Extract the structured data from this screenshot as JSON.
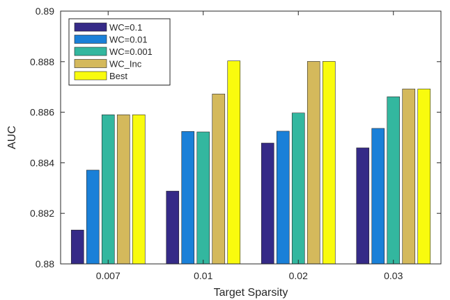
{
  "chart_data": {
    "type": "bar",
    "title": "",
    "xlabel": "Target Sparsity",
    "ylabel": "AUC",
    "categories": [
      "0.007",
      "0.01",
      "0.02",
      "0.03"
    ],
    "ylim": [
      0.88,
      0.89
    ],
    "yticks": [
      "0.88",
      "0.882",
      "0.884",
      "0.886",
      "0.888",
      "0.89"
    ],
    "ytick_values": [
      0.88,
      0.882,
      0.884,
      0.886,
      0.888,
      0.89
    ],
    "grid": false,
    "legend_position": "top-left",
    "series": [
      {
        "name": "WC=0.1",
        "color": "#352a87",
        "values": [
          0.88134,
          0.88288,
          0.88478,
          0.88459
        ]
      },
      {
        "name": "WC=0.01",
        "color": "#1a80d8",
        "values": [
          0.88371,
          0.88524,
          0.88525,
          0.88536
        ]
      },
      {
        "name": "WC=0.001",
        "color": "#33b79f",
        "values": [
          0.8859,
          0.88522,
          0.88597,
          0.88661
        ]
      },
      {
        "name": "WC_Inc",
        "color": "#d4b95c",
        "values": [
          0.8859,
          0.88672,
          0.88801,
          0.88692
        ]
      },
      {
        "name": "Best",
        "color": "#f9fb0e",
        "values": [
          0.8859,
          0.88803,
          0.88801,
          0.88692
        ]
      }
    ]
  }
}
